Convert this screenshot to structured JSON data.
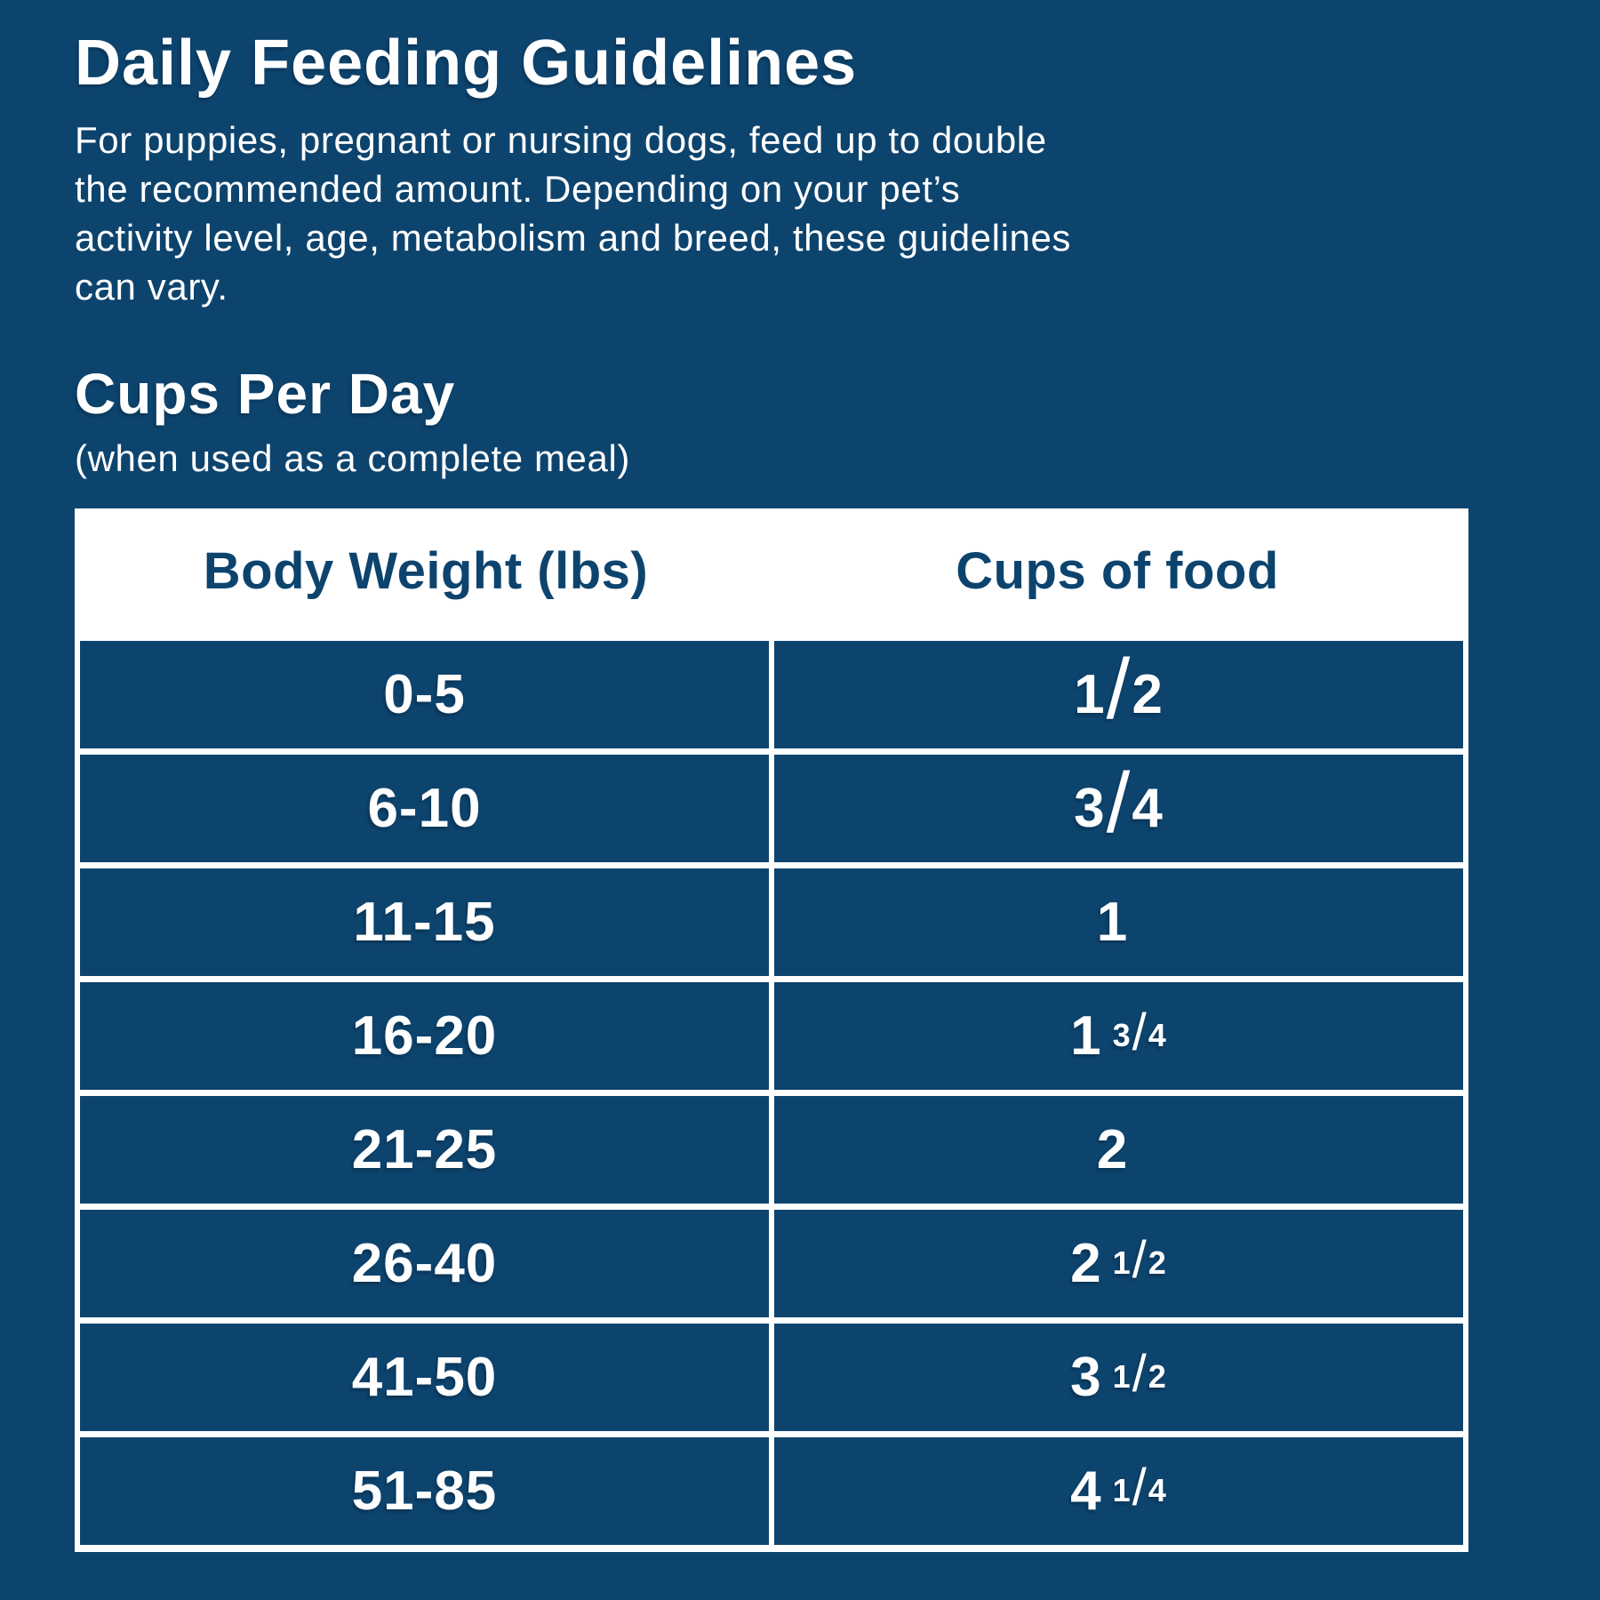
{
  "page": {
    "title": "Daily Feeding Guidelines",
    "intro_lines": [
      "For puppies, pregnant or nursing dogs, feed up to double",
      "the recommended amount. Depending on your pet’s",
      "activity level, age, metabolism and breed, these guidelines",
      "can vary."
    ],
    "section_title": "Cups Per Day",
    "section_subtitle": "(when used as a complete meal)"
  },
  "colors": {
    "background": "#0d446e",
    "table_background": "#ffffff",
    "header_text": "#0d446e",
    "cell_text": "#ffffff"
  },
  "table": {
    "headers": [
      "Body Weight (lbs)",
      "Cups of food"
    ],
    "rows": [
      {
        "weight": "0-5",
        "whole": "",
        "num": "1",
        "slash": "/",
        "den": "2"
      },
      {
        "weight": "6-10",
        "whole": "",
        "num": "3",
        "slash": "/",
        "den": "4"
      },
      {
        "weight": "11-15",
        "whole": "1",
        "num": "",
        "slash": "",
        "den": ""
      },
      {
        "weight": "16-20",
        "whole": "1",
        "num": "3",
        "slash": "/",
        "den": "4"
      },
      {
        "weight": "21-25",
        "whole": "2",
        "num": "",
        "slash": "",
        "den": ""
      },
      {
        "weight": "26-40",
        "whole": "2",
        "num": "1",
        "slash": "/",
        "den": "2"
      },
      {
        "weight": "41-50",
        "whole": "3",
        "num": "1",
        "slash": "/",
        "den": "2"
      },
      {
        "weight": "51-85",
        "whole": "4",
        "num": "1",
        "slash": "/",
        "den": "4"
      }
    ]
  }
}
